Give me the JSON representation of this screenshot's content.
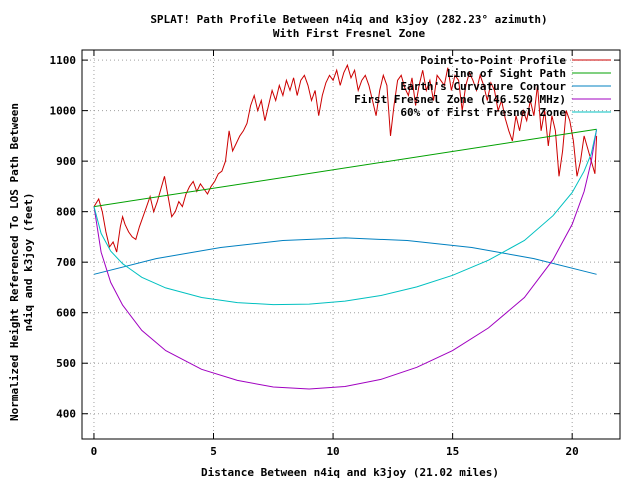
{
  "chart_data": {
    "type": "line",
    "title": "SPLAT! Path Profile Between n4iq and k3joy (282.23° azimuth)",
    "subtitle": "With First Fresnel Zone",
    "xlabel": "Distance Between n4iq and k3joy (21.02 miles)",
    "ylabel_line1": "Normalized Height Referenced To LOS Path Between",
    "ylabel_line2": "n4iq and k3joy (feet)",
    "xlim": [
      -0.5,
      22
    ],
    "ylim": [
      350,
      1120
    ],
    "xticks": [
      0,
      5,
      10,
      15,
      20
    ],
    "yticks": [
      400,
      500,
      600,
      700,
      800,
      900,
      1000,
      1100
    ],
    "grid": true,
    "legend_position": "top-right",
    "series": [
      {
        "name": "Point-to-Point Profile",
        "color": "#cc0000",
        "x": [
          0,
          0.2,
          0.35,
          0.5,
          0.65,
          0.8,
          0.95,
          1.1,
          1.2,
          1.3,
          1.45,
          1.6,
          1.75,
          1.9,
          2.05,
          2.2,
          2.35,
          2.5,
          2.65,
          2.8,
          2.95,
          3.1,
          3.25,
          3.4,
          3.55,
          3.7,
          3.85,
          4.0,
          4.15,
          4.3,
          4.45,
          4.6,
          4.75,
          4.9,
          5.05,
          5.2,
          5.35,
          5.5,
          5.65,
          5.8,
          5.95,
          6.1,
          6.25,
          6.4,
          6.55,
          6.7,
          6.85,
          7.0,
          7.15,
          7.3,
          7.45,
          7.6,
          7.75,
          7.9,
          8.05,
          8.2,
          8.35,
          8.5,
          8.65,
          8.8,
          8.95,
          9.1,
          9.25,
          9.4,
          9.55,
          9.7,
          9.85,
          10.0,
          10.15,
          10.3,
          10.45,
          10.6,
          10.75,
          10.9,
          11.05,
          11.2,
          11.35,
          11.5,
          11.65,
          11.8,
          11.95,
          12.1,
          12.25,
          12.4,
          12.55,
          12.7,
          12.85,
          13.0,
          13.15,
          13.3,
          13.45,
          13.6,
          13.75,
          13.9,
          14.05,
          14.2,
          14.35,
          14.5,
          14.65,
          14.8,
          14.95,
          15.1,
          15.25,
          15.4,
          15.55,
          15.7,
          15.85,
          16.0,
          16.15,
          16.3,
          16.45,
          16.6,
          16.75,
          16.9,
          17.05,
          17.2,
          17.35,
          17.5,
          17.65,
          17.8,
          17.95,
          18.1,
          18.25,
          18.4,
          18.55,
          18.7,
          18.85,
          19.0,
          19.15,
          19.3,
          19.45,
          19.6,
          19.75,
          19.9,
          20.05,
          20.2,
          20.35,
          20.5,
          20.65,
          20.8,
          20.95,
          21.02
        ],
        "y": [
          810,
          825,
          800,
          760,
          730,
          740,
          720,
          770,
          790,
          775,
          760,
          750,
          745,
          770,
          790,
          810,
          830,
          800,
          820,
          845,
          870,
          830,
          790,
          800,
          820,
          810,
          835,
          850,
          860,
          840,
          855,
          845,
          835,
          850,
          860,
          875,
          880,
          900,
          960,
          920,
          935,
          950,
          960,
          975,
          1010,
          1030,
          1000,
          1020,
          980,
          1010,
          1040,
          1020,
          1050,
          1030,
          1060,
          1040,
          1065,
          1030,
          1060,
          1070,
          1050,
          1020,
          1040,
          990,
          1030,
          1055,
          1070,
          1060,
          1080,
          1050,
          1075,
          1090,
          1065,
          1080,
          1040,
          1060,
          1070,
          1050,
          1020,
          990,
          1040,
          1070,
          1050,
          950,
          1010,
          1060,
          1070,
          1045,
          1030,
          1065,
          1010,
          1050,
          1080,
          1040,
          1060,
          1020,
          1070,
          1060,
          1050,
          1085,
          1040,
          1070,
          1060,
          1000,
          1050,
          1075,
          1060,
          1040,
          1070,
          1050,
          1020,
          1055,
          1040,
          1000,
          1020,
          985,
          960,
          940,
          990,
          960,
          1000,
          980,
          1020,
          990,
          1050,
          960,
          1000,
          930,
          990,
          960,
          870,
          920,
          1000,
          980,
          940,
          870,
          900,
          950,
          925,
          900,
          875,
          950
        ]
      },
      {
        "name": "Line of Sight Path",
        "color": "#00a000",
        "x": [
          0,
          21.02
        ],
        "y": [
          810,
          963
        ]
      },
      {
        "name": "Earth's Curvature Contour",
        "color": "#0080c0",
        "x": [
          0,
          2.6,
          5.3,
          7.9,
          10.51,
          13.1,
          15.8,
          18.4,
          21.02
        ],
        "y": [
          676,
          707,
          729,
          743,
          748,
          743,
          729,
          707,
          676
        ]
      },
      {
        "name": "First Fresnel Zone (146.520 MHz)",
        "color": "#a000c0",
        "x": [
          0,
          0.3,
          0.7,
          1.2,
          2.0,
          3.0,
          4.5,
          6.0,
          7.5,
          9.0,
          10.5,
          12.0,
          13.5,
          15.0,
          16.5,
          18.0,
          19.2,
          20.0,
          20.5,
          20.8,
          21.02
        ],
        "y": [
          810,
          720,
          660,
          615,
          565,
          525,
          488,
          466,
          453,
          449,
          454,
          468,
          492,
          525,
          570,
          630,
          705,
          775,
          840,
          900,
          963
        ]
      },
      {
        "name": "60% of First Fresnel Zone",
        "color": "#00c0c0",
        "x": [
          0,
          0.3,
          0.7,
          1.2,
          2.0,
          3.0,
          4.5,
          6.0,
          7.5,
          9.0,
          10.5,
          12.0,
          13.5,
          15.0,
          16.5,
          18.0,
          19.2,
          20.0,
          20.5,
          20.8,
          21.02
        ],
        "y": [
          810,
          757,
          722,
          697,
          670,
          649,
          630,
          620,
          616,
          617,
          623,
          634,
          651,
          674,
          704,
          743,
          792,
          838,
          880,
          915,
          963
        ]
      }
    ]
  }
}
